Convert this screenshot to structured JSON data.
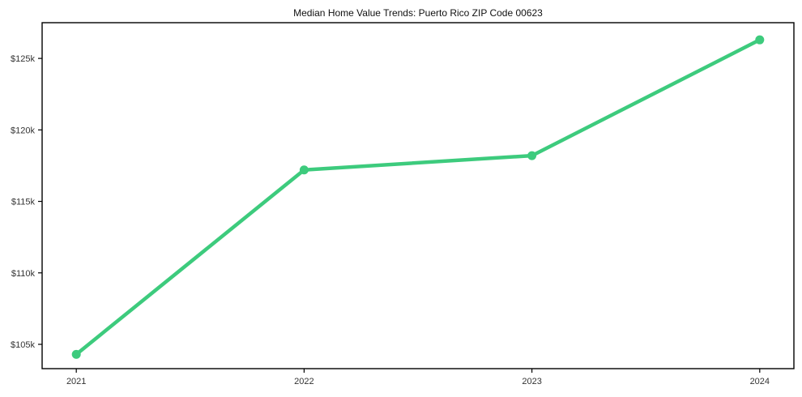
{
  "chart_data": {
    "type": "line",
    "title": "Median Home Value Trends: Puerto Rico ZIP Code 00623",
    "xlabel": "",
    "ylabel": "",
    "categories": [
      2021,
      2022,
      2023,
      2024
    ],
    "x_tick_labels": [
      "2021",
      "2022",
      "2023",
      "2024"
    ],
    "series": [
      {
        "name": "Median Home Value",
        "values": [
          104300,
          117200,
          118200,
          126300
        ],
        "color": "#3dcb7d",
        "line_width": 4.5,
        "marker": "circle",
        "marker_radius": 5.5
      }
    ],
    "y_ticks": [
      {
        "value": 105000,
        "label": "$105k"
      },
      {
        "value": 110000,
        "label": "$110k"
      },
      {
        "value": 115000,
        "label": "$115k"
      },
      {
        "value": 120000,
        "label": "$120k"
      },
      {
        "value": 125000,
        "label": "$125k"
      }
    ],
    "xlim": [
      2020.85,
      2024.15
    ],
    "ylim": [
      103300,
      127500
    ],
    "grid": false,
    "legend_position": "none"
  }
}
